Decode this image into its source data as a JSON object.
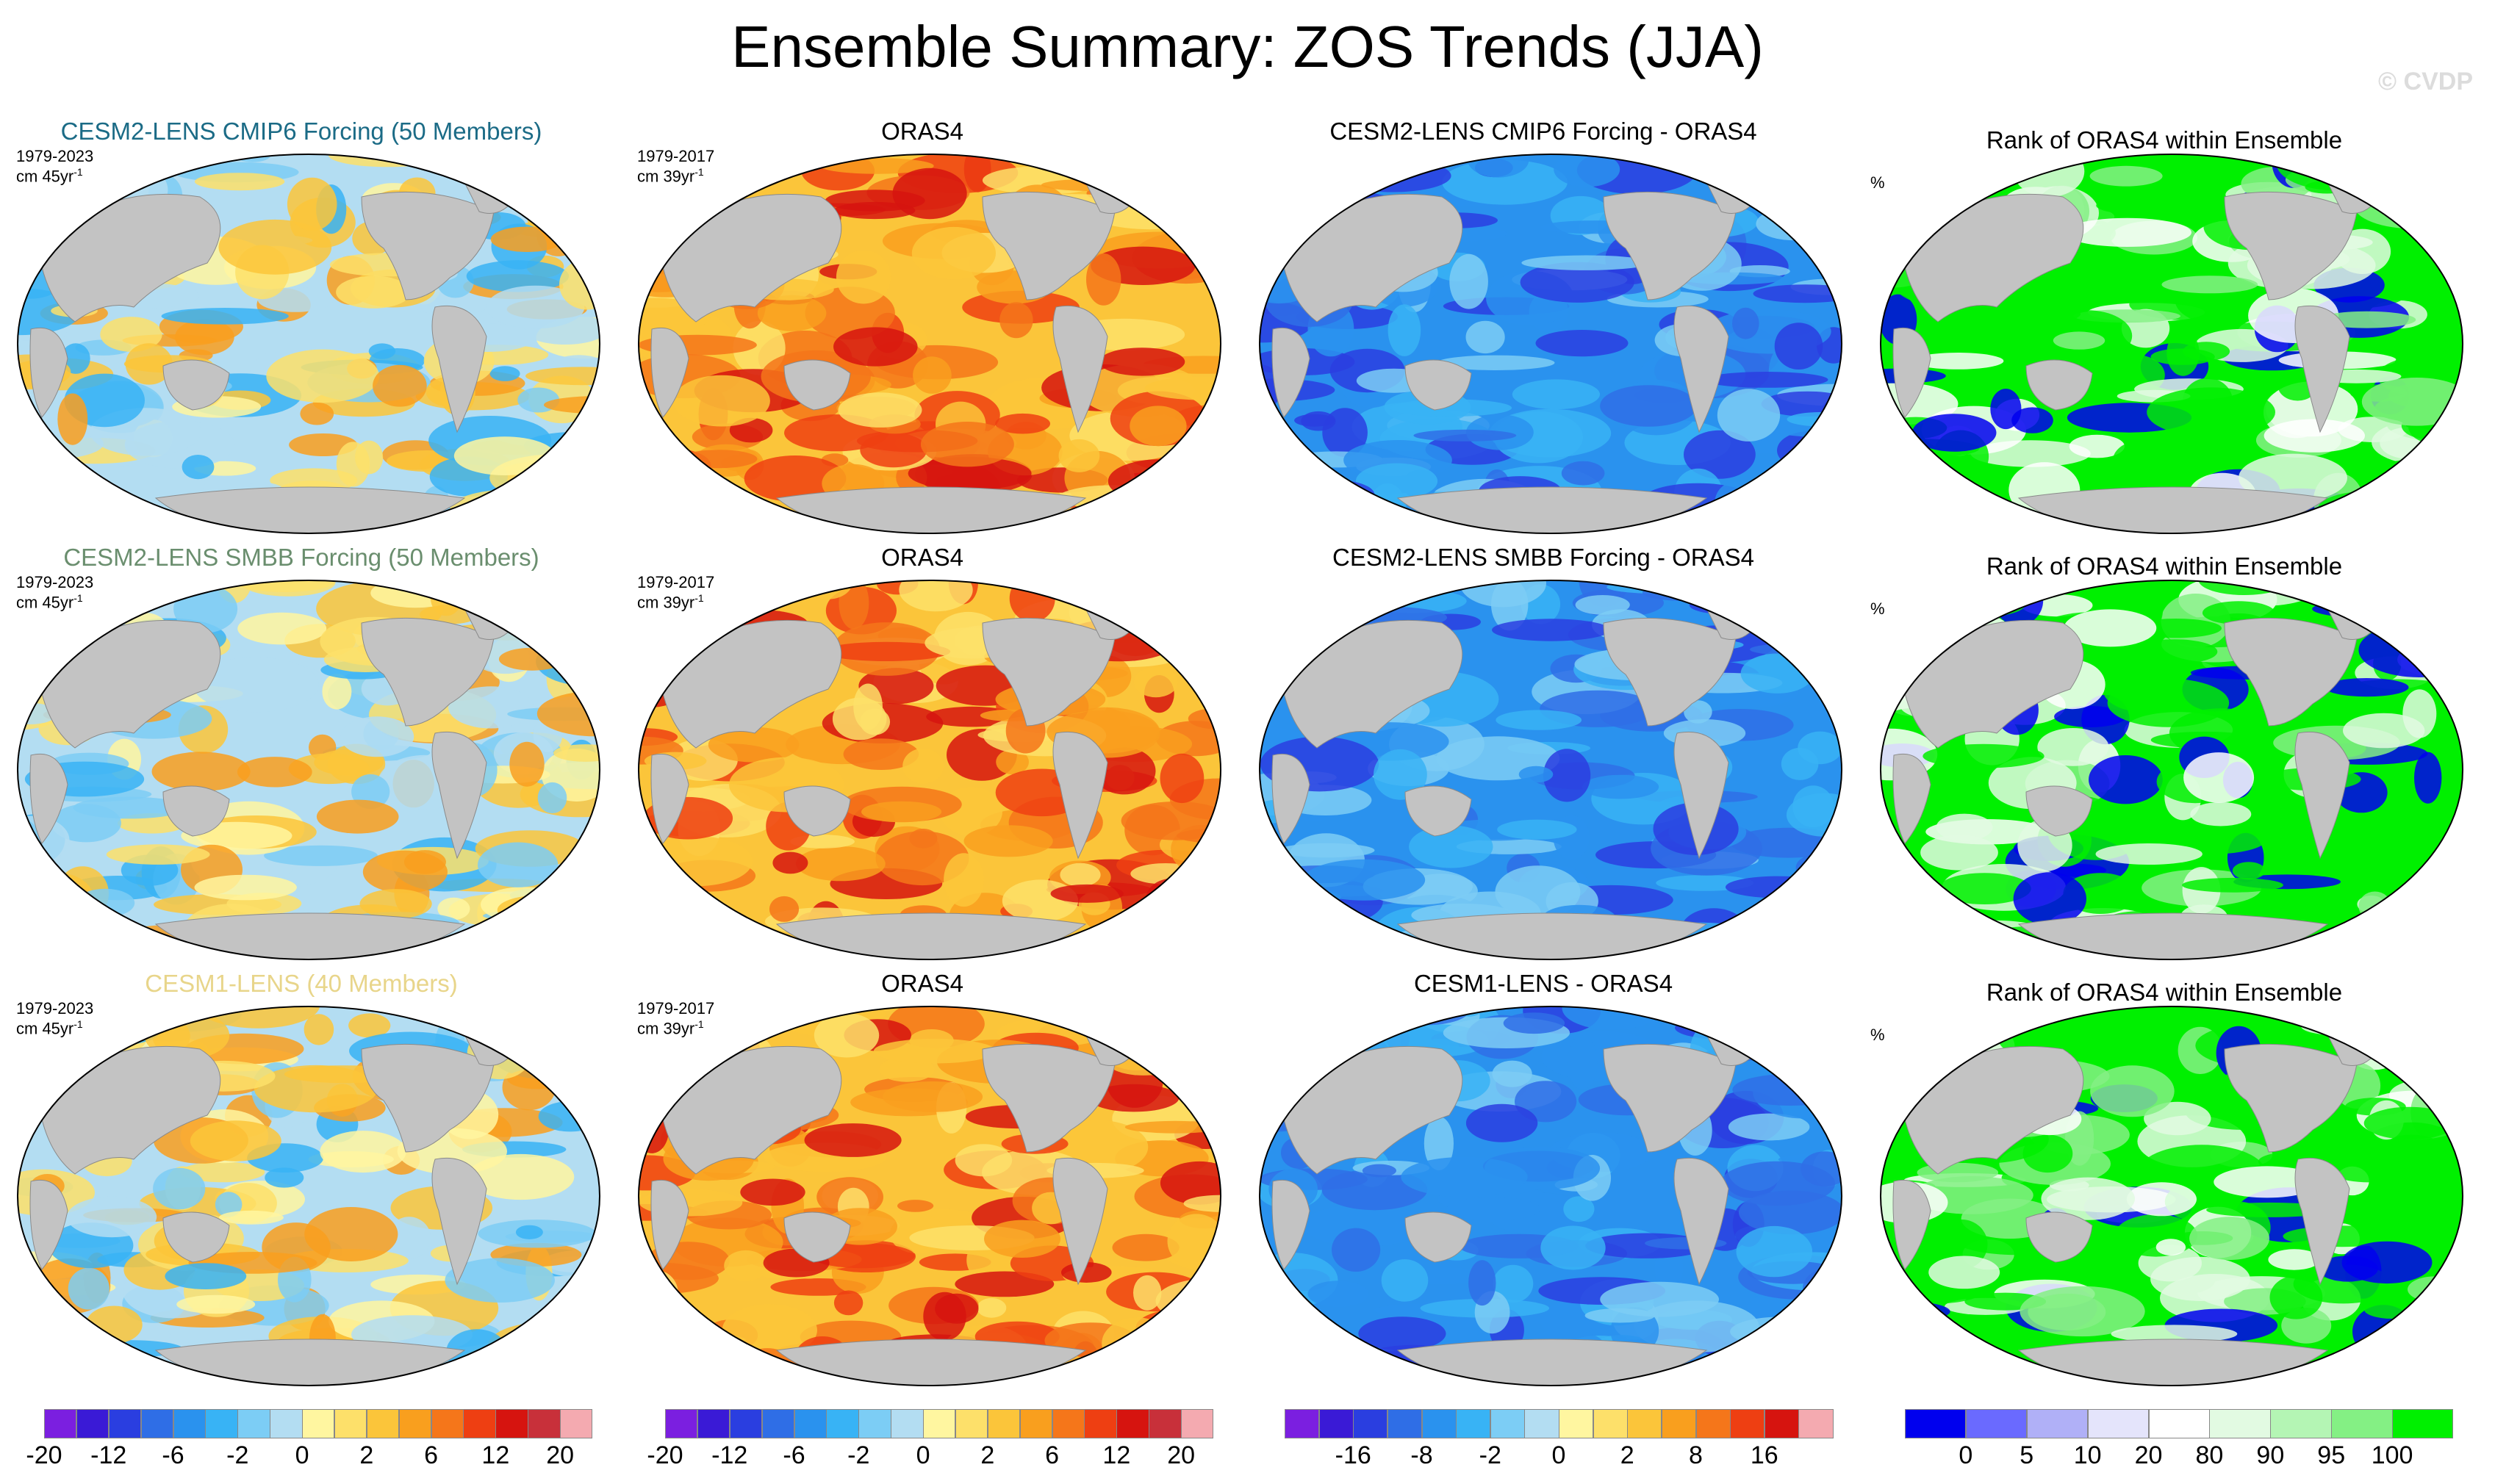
{
  "title": "Ensemble Summary: ZOS Trends (JJA)",
  "watermark": "© CVDP",
  "units": {
    "ens": "cm 45yr",
    "obs": "cm 39yr",
    "superscript": "-1",
    "percent": "%"
  },
  "rows": [
    {
      "ensemble_title": "CESM2-LENS CMIP6 Forcing (50 Members)",
      "ensemble_title_color": "#1b6b86",
      "ensemble_period": "1979-2023",
      "obs_title": "ORAS4",
      "obs_period": "1979-2017",
      "diff_title": "CESM2-LENS CMIP6 Forcing - ORAS4",
      "rank_title": "Rank of ORAS4 within Ensemble"
    },
    {
      "ensemble_title": "CESM2-LENS SMBB Forcing (50 Members)",
      "ensemble_title_color": "#6a8e6e",
      "ensemble_period": "1979-2023",
      "obs_title": "ORAS4",
      "obs_period": "1979-2017",
      "diff_title": "CESM2-LENS SMBB Forcing - ORAS4",
      "rank_title": "Rank of ORAS4 within Ensemble"
    },
    {
      "ensemble_title": "CESM1-LENS (40 Members)",
      "ensemble_title_color": "#e8d58a",
      "ensemble_period": "1979-2023",
      "obs_title": "ORAS4",
      "obs_period": "1979-2017",
      "diff_title": "CESM1-LENS - ORAS4",
      "rank_title": "Rank of ORAS4 within Ensemble"
    }
  ],
  "colorbars": [
    {
      "colors": [
        "#7b1fe0",
        "#3a1ad6",
        "#2a3ee0",
        "#2f6ee6",
        "#2a92ee",
        "#38b3f5",
        "#7ccdf5",
        "#b3ddf2",
        "#fff6a0",
        "#fde06a",
        "#fbc53a",
        "#f99f1e",
        "#f5761a",
        "#ee3f12",
        "#d6140f",
        "#c8303a",
        "#f4aab0"
      ],
      "labels": [
        "-20",
        "-12",
        "-6",
        "-2",
        "0",
        "2",
        "6",
        "12",
        "20"
      ]
    },
    {
      "colors": [
        "#7b1fe0",
        "#3a1ad6",
        "#2a3ee0",
        "#2f6ee6",
        "#2a92ee",
        "#38b3f5",
        "#7ccdf5",
        "#b3ddf2",
        "#fff6a0",
        "#fde06a",
        "#fbc53a",
        "#f99f1e",
        "#f5761a",
        "#ee3f12",
        "#d6140f",
        "#c8303a",
        "#f4aab0"
      ],
      "labels": [
        "-20",
        "-12",
        "-6",
        "-2",
        "0",
        "2",
        "6",
        "12",
        "20"
      ]
    },
    {
      "colors": [
        "#7b1fe0",
        "#3a1ad6",
        "#2a3ee0",
        "#2f6ee6",
        "#2a92ee",
        "#38b3f5",
        "#7ccdf5",
        "#b3ddf2",
        "#fff6a0",
        "#fde06a",
        "#fbc53a",
        "#f99f1e",
        "#f5761a",
        "#ee3f12",
        "#d6140f",
        "#f4aab0"
      ],
      "labels": [
        "-16",
        "-8",
        "-2",
        "0",
        "2",
        "8",
        "16"
      ]
    },
    {
      "colors": [
        "#0000ee",
        "#6a6aff",
        "#b0b0f7",
        "#e4e4fb",
        "#ffffff",
        "#e2fae2",
        "#b4f5b4",
        "#84f084",
        "#00f000"
      ],
      "labels": [
        "0",
        "5",
        "10",
        "20",
        "80",
        "90",
        "95",
        "100"
      ]
    }
  ],
  "palette": {
    "land": "#c3c3c3",
    "ensemble": [
      "#b3ddf2",
      "#7ccdf5",
      "#38b3f5",
      "#fff6a0",
      "#fde06a",
      "#fbc53a",
      "#f99f1e"
    ],
    "obs": [
      "#fbc53a",
      "#f99f1e",
      "#f5761a",
      "#ee3f12",
      "#d6140f",
      "#fde06a"
    ],
    "diff": [
      "#2a92ee",
      "#2f6ee6",
      "#2a3ee0",
      "#38b3f5",
      "#7ccdf5"
    ],
    "rank": [
      "#00f000",
      "#00f000",
      "#00f000",
      "#84f084",
      "#ffffff",
      "#e2fae2",
      "#0000ee"
    ]
  }
}
